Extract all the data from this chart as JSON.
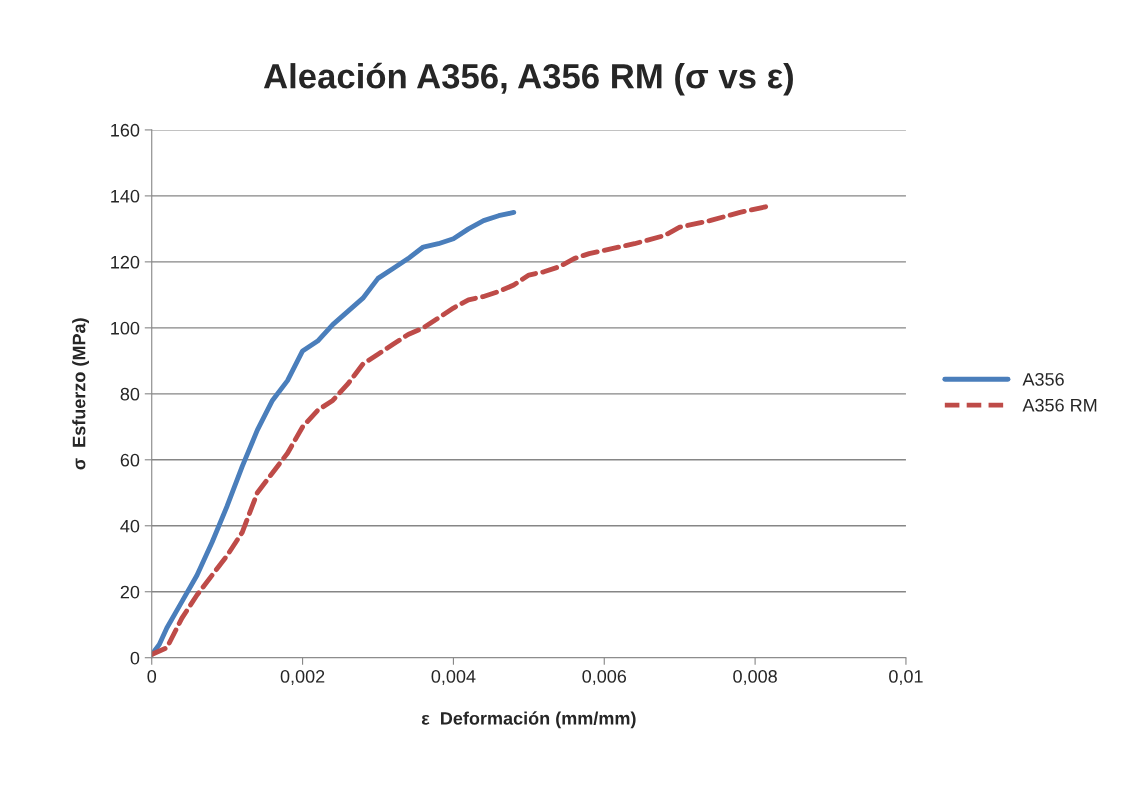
{
  "chart_data": {
    "type": "line",
    "title": "Aleación A356, A356 RM (σ vs ε)",
    "xlabel": "ε  Deformación (mm/mm)",
    "ylabel": "σ  Esfuerzo (MPa)",
    "xlim": [
      0,
      0.01
    ],
    "xticks": [
      0,
      {
        "value": 0.002,
        "label": "0,002"
      },
      {
        "value": 0.004,
        "label": "0,004"
      },
      {
        "value": 0.006,
        "label": "0,006"
      },
      {
        "value": 0.008,
        "label": "0,008"
      },
      {
        "value": 0.01,
        "label": "0,01"
      }
    ],
    "ylim": [
      0,
      160
    ],
    "yticks": [
      0,
      20,
      40,
      60,
      80,
      100,
      120,
      140,
      160
    ],
    "grid": "y",
    "legend": "right",
    "marker": "none",
    "series": [
      {
        "name": "A356",
        "color": "#4a7ebb",
        "line_style": "solid",
        "x": [
          0,
          0.0001,
          0.0002,
          0.0004,
          0.0006,
          0.0008,
          0.001,
          0.0012,
          0.0014,
          0.0016,
          0.0018,
          0.002,
          0.0022,
          0.0024,
          0.0026,
          0.0028,
          0.003,
          0.0032,
          0.0034,
          0.0036,
          0.0038,
          0.004,
          0.0042,
          0.0044,
          0.0046,
          0.0048
        ],
        "values": [
          1,
          4,
          9,
          17,
          25,
          35,
          46,
          58,
          69,
          78,
          84,
          93,
          96,
          101,
          105,
          109,
          115,
          118,
          121,
          124.5,
          125.5,
          127,
          130,
          132.5,
          134,
          135
        ]
      },
      {
        "name": "A356 RM",
        "color": "#be4b48",
        "line_style": "dashed",
        "x": [
          0,
          0.0002,
          0.0004,
          0.0006,
          0.0008,
          0.001,
          0.0012,
          0.0014,
          0.0016,
          0.0018,
          0.002,
          0.0022,
          0.0024,
          0.0026,
          0.0028,
          0.003,
          0.0032,
          0.0034,
          0.0036,
          0.0038,
          0.004,
          0.0042,
          0.0044,
          0.0046,
          0.0048,
          0.005,
          0.0052,
          0.0054,
          0.0056,
          0.0058,
          0.006,
          0.0064,
          0.0068,
          0.007,
          0.0074,
          0.0078,
          0.0082
        ],
        "values": [
          1,
          3,
          12,
          19,
          25,
          31,
          38,
          50,
          56,
          62,
          70,
          75,
          78,
          83,
          89,
          92,
          95,
          98,
          100,
          103,
          106,
          108.5,
          109.5,
          111,
          113,
          116,
          117,
          118.5,
          121,
          122.5,
          123.5,
          125.5,
          128,
          130.5,
          132.5,
          135,
          137
        ]
      }
    ]
  }
}
